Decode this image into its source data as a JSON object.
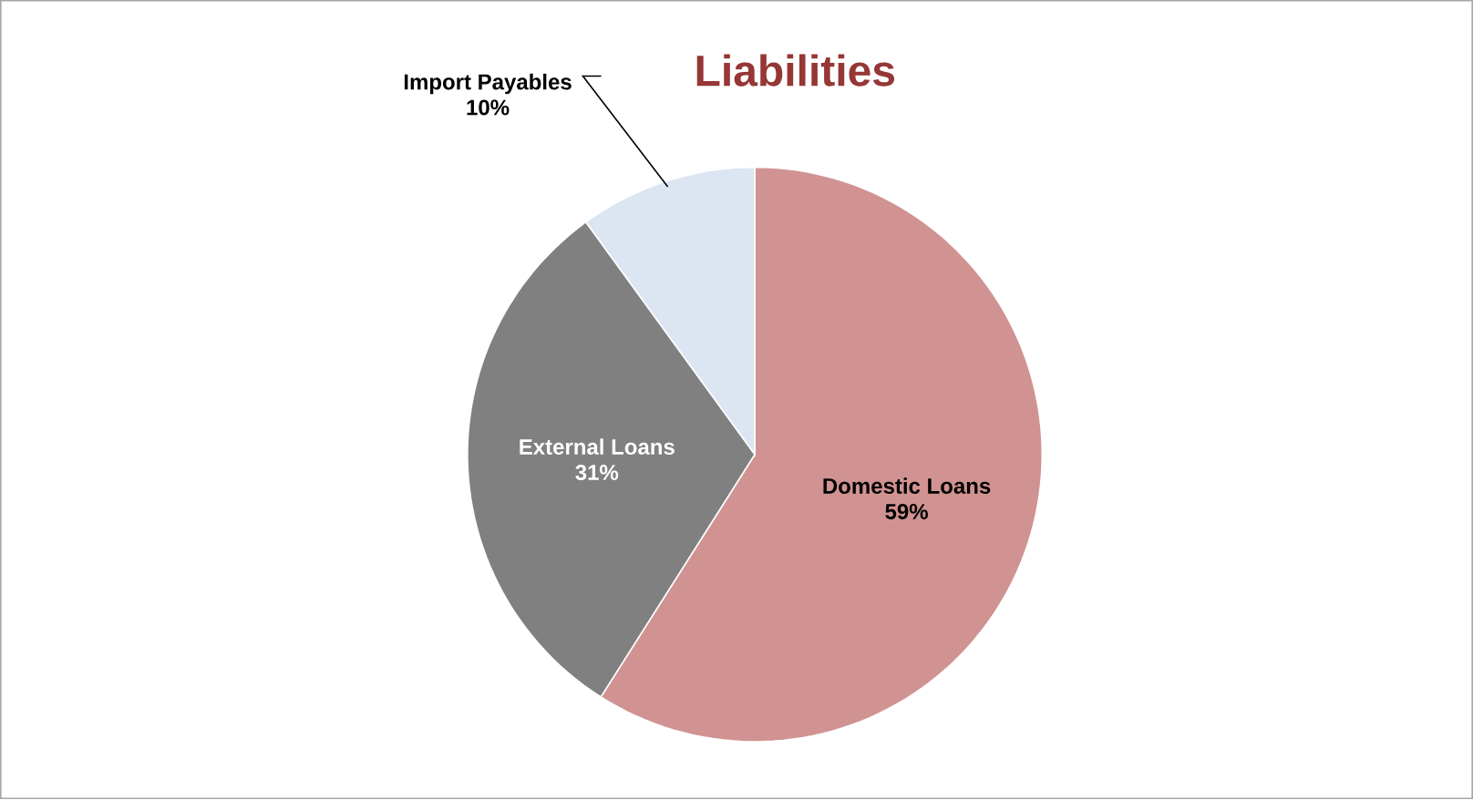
{
  "chart_data": {
    "type": "pie",
    "title": "Liabilities",
    "categories": [
      "Domestic Loans",
      "External Loans",
      "Import Payables"
    ],
    "values": [
      59,
      31,
      10
    ],
    "value_labels": [
      "59%",
      "31%",
      "10%"
    ],
    "colors": [
      "#d09392",
      "#808080",
      "#dce6f2"
    ],
    "data_labels": true
  }
}
